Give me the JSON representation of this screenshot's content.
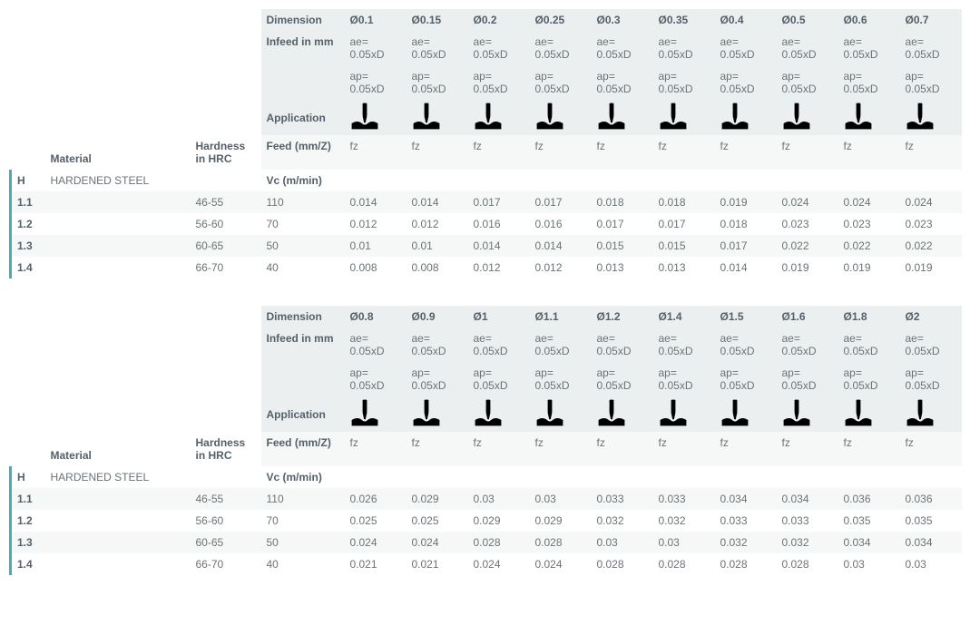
{
  "colors": {
    "text": "#6b7378",
    "strong_text": "#54606a",
    "header_bg": "#eceff0",
    "alt_row_bg": "#f6f7f7",
    "left_bar": "#5ea1b1",
    "icon_fill": "#5f686f",
    "icon_tool_fill": "#d8d8d8",
    "page_bg": "#ffffff"
  },
  "labels": {
    "dimension": "Dimension",
    "infeed": "Infeed in mm",
    "ae": "ae= 0.05xD",
    "ap": "ap= 0.05xD",
    "application": "Application",
    "material": "Material",
    "hardness": "Hardness in HRC",
    "feed": "Feed (mm/Z)",
    "fz": "fz",
    "vc": "Vc (m/min)"
  },
  "tables": [
    {
      "diameters": [
        "Ø0.1",
        "Ø0.15",
        "Ø0.2",
        "Ø0.25",
        "Ø0.3",
        "Ø0.35",
        "Ø0.4",
        "Ø0.5",
        "Ø0.6",
        "Ø0.7"
      ],
      "group": {
        "code": "H",
        "name": "HARDENED STEEL"
      },
      "rows": [
        {
          "code": "1.1",
          "hrc": "46-55",
          "vc": "110",
          "fz": [
            "0.014",
            "0.014",
            "0.017",
            "0.017",
            "0.018",
            "0.018",
            "0.019",
            "0.024",
            "0.024",
            "0.024"
          ]
        },
        {
          "code": "1.2",
          "hrc": "56-60",
          "vc": "70",
          "fz": [
            "0.012",
            "0.012",
            "0.016",
            "0.016",
            "0.017",
            "0.017",
            "0.018",
            "0.023",
            "0.023",
            "0.023"
          ]
        },
        {
          "code": "1.3",
          "hrc": "60-65",
          "vc": "50",
          "fz": [
            "0.01",
            "0.01",
            "0.014",
            "0.014",
            "0.015",
            "0.015",
            "0.017",
            "0.022",
            "0.022",
            "0.022"
          ]
        },
        {
          "code": "1.4",
          "hrc": "66-70",
          "vc": "40",
          "fz": [
            "0.008",
            "0.008",
            "0.012",
            "0.012",
            "0.013",
            "0.013",
            "0.014",
            "0.019",
            "0.019",
            "0.019"
          ]
        }
      ]
    },
    {
      "diameters": [
        "Ø0.8",
        "Ø0.9",
        "Ø1",
        "Ø1.1",
        "Ø1.2",
        "Ø1.4",
        "Ø1.5",
        "Ø1.6",
        "Ø1.8",
        "Ø2"
      ],
      "group": {
        "code": "H",
        "name": "HARDENED STEEL"
      },
      "rows": [
        {
          "code": "1.1",
          "hrc": "46-55",
          "vc": "110",
          "fz": [
            "0.026",
            "0.029",
            "0.03",
            "0.03",
            "0.033",
            "0.033",
            "0.034",
            "0.034",
            "0.036",
            "0.036"
          ]
        },
        {
          "code": "1.2",
          "hrc": "56-60",
          "vc": "70",
          "fz": [
            "0.025",
            "0.025",
            "0.029",
            "0.029",
            "0.032",
            "0.032",
            "0.033",
            "0.033",
            "0.035",
            "0.035"
          ]
        },
        {
          "code": "1.3",
          "hrc": "60-65",
          "vc": "50",
          "fz": [
            "0.024",
            "0.024",
            "0.028",
            "0.028",
            "0.03",
            "0.03",
            "0.032",
            "0.032",
            "0.034",
            "0.034"
          ]
        },
        {
          "code": "1.4",
          "hrc": "66-70",
          "vc": "40",
          "fz": [
            "0.021",
            "0.021",
            "0.024",
            "0.024",
            "0.028",
            "0.028",
            "0.028",
            "0.028",
            "0.03",
            "0.03"
          ]
        }
      ]
    }
  ]
}
